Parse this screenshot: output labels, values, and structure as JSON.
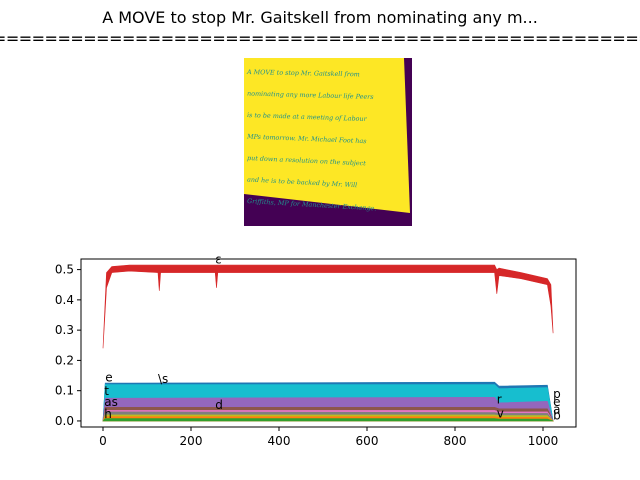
{
  "figure": {
    "title_line1": "A MOVE to stop Mr. Gaitskell from nominating any m...",
    "title_line2": "========================================================"
  },
  "image_panel": {
    "background_color": "#440154",
    "page_color": "#fde725",
    "ink_color": "#21918c",
    "handwriting_lines": [
      "A MOVE to stop Mr. Gaitskell from",
      "nominating any more Labour life Peers",
      "is to be made at a meeting of Labour",
      "MPs tomorrow. Mr. Michael Foot has",
      "put down a resolution on the subject",
      "and he is to be backed by Mr. Will",
      "Griffiths, MP for Manchester Exchange."
    ]
  },
  "chart_data": {
    "type": "area",
    "x_range": [
      0,
      1023
    ],
    "xlim": [
      -50,
      1075
    ],
    "ylim": [
      -0.02,
      0.535
    ],
    "xticks": [
      0,
      200,
      400,
      600,
      800,
      1000
    ],
    "yticks": [
      0.0,
      0.1,
      0.2,
      0.3,
      0.4,
      0.5
    ],
    "grid": false,
    "series": [
      {
        "color": "#d62728",
        "low": [
          [
            0,
            0.24
          ],
          [
            8,
            0.44
          ],
          [
            20,
            0.49
          ],
          [
            60,
            0.495
          ],
          [
            125,
            0.49
          ],
          [
            128,
            0.43
          ],
          [
            131,
            0.49
          ],
          [
            255,
            0.49
          ],
          [
            258,
            0.44
          ],
          [
            261,
            0.49
          ],
          [
            890,
            0.49
          ],
          [
            895,
            0.42
          ],
          [
            900,
            0.48
          ],
          [
            950,
            0.47
          ],
          [
            1010,
            0.45
          ],
          [
            1018,
            0.38
          ],
          [
            1023,
            0.29
          ]
        ],
        "high": [
          [
            0,
            0.24
          ],
          [
            8,
            0.49
          ],
          [
            20,
            0.51
          ],
          [
            60,
            0.515
          ],
          [
            890,
            0.515
          ],
          [
            895,
            0.5
          ],
          [
            900,
            0.505
          ],
          [
            950,
            0.49
          ],
          [
            1010,
            0.47
          ],
          [
            1018,
            0.45
          ],
          [
            1023,
            0.29
          ]
        ]
      },
      {
        "color": "#1f77b4",
        "low": [
          [
            0,
            0.0
          ],
          [
            1023,
            0.0
          ]
        ],
        "high": [
          [
            0,
            0.0
          ],
          [
            5,
            0.125
          ],
          [
            890,
            0.128
          ],
          [
            900,
            0.115
          ],
          [
            1010,
            0.118
          ],
          [
            1023,
            0.0
          ]
        ]
      },
      {
        "color": "#17becf",
        "low": [
          [
            0,
            0.0
          ],
          [
            1023,
            0.0
          ]
        ],
        "high": [
          [
            0,
            0.0
          ],
          [
            5,
            0.12
          ],
          [
            890,
            0.12
          ],
          [
            900,
            0.107
          ],
          [
            1010,
            0.11
          ],
          [
            1023,
            0.0
          ]
        ]
      },
      {
        "color": "#9467bd",
        "low": [
          [
            0,
            0.0
          ],
          [
            1023,
            0.0
          ]
        ],
        "high": [
          [
            0,
            0.0
          ],
          [
            5,
            0.075
          ],
          [
            890,
            0.078
          ],
          [
            900,
            0.06
          ],
          [
            1010,
            0.065
          ],
          [
            1023,
            0.0
          ]
        ]
      },
      {
        "color": "#8c564b",
        "low": [
          [
            0,
            0.0
          ],
          [
            1023,
            0.0
          ]
        ],
        "high": [
          [
            0,
            0.0
          ],
          [
            5,
            0.045
          ],
          [
            890,
            0.045
          ],
          [
            900,
            0.04
          ],
          [
            1010,
            0.04
          ],
          [
            1023,
            0.0
          ]
        ]
      },
      {
        "color": "#e377c2",
        "low": [
          [
            0,
            0.0
          ],
          [
            1023,
            0.0
          ]
        ],
        "high": [
          [
            0,
            0.0
          ],
          [
            5,
            0.035
          ],
          [
            890,
            0.035
          ],
          [
            900,
            0.03
          ],
          [
            1010,
            0.03
          ],
          [
            1023,
            0.0
          ]
        ]
      },
      {
        "color": "#7f7f7f",
        "low": [
          [
            0,
            0.0
          ],
          [
            1023,
            0.0
          ]
        ],
        "high": [
          [
            0,
            0.0
          ],
          [
            5,
            0.03
          ],
          [
            890,
            0.028
          ],
          [
            900,
            0.025
          ],
          [
            1010,
            0.025
          ],
          [
            1023,
            0.0
          ]
        ]
      },
      {
        "color": "#bcbd22",
        "low": [
          [
            0,
            0.0
          ],
          [
            1023,
            0.0
          ]
        ],
        "high": [
          [
            0,
            0.0
          ],
          [
            5,
            0.02
          ],
          [
            890,
            0.02
          ],
          [
            900,
            0.018
          ],
          [
            1010,
            0.018
          ],
          [
            1023,
            0.0
          ]
        ]
      },
      {
        "color": "#ff7f0e",
        "low": [
          [
            0,
            0.0
          ],
          [
            1023,
            0.0
          ]
        ],
        "high": [
          [
            0,
            0.0
          ],
          [
            5,
            0.014
          ],
          [
            890,
            0.014
          ],
          [
            900,
            0.012
          ],
          [
            1010,
            0.012
          ],
          [
            1023,
            0.0
          ]
        ]
      },
      {
        "color": "#2ca02c",
        "low": [
          [
            0,
            0.0
          ],
          [
            1023,
            0.0
          ]
        ],
        "high": [
          [
            0,
            0.0
          ],
          [
            5,
            0.008
          ],
          [
            890,
            0.008
          ],
          [
            900,
            0.006
          ],
          [
            1010,
            0.006
          ],
          [
            1023,
            0.0
          ]
        ]
      }
    ],
    "annotations": [
      {
        "text": "ε",
        "x": 255,
        "y": 0.52
      },
      {
        "text": "e",
        "x": 5,
        "y": 0.13
      },
      {
        "text": "\\s",
        "x": 125,
        "y": 0.125
      },
      {
        "text": "t",
        "x": 3,
        "y": 0.085
      },
      {
        "text": "as",
        "x": 3,
        "y": 0.05
      },
      {
        "text": "d",
        "x": 255,
        "y": 0.04
      },
      {
        "text": "r",
        "x": 895,
        "y": 0.058
      },
      {
        "text": "v",
        "x": 895,
        "y": 0.012
      },
      {
        "text": "p",
        "x": 1023,
        "y": 0.075
      },
      {
        "text": "e",
        "x": 1023,
        "y": 0.05
      },
      {
        "text": "a",
        "x": 1023,
        "y": 0.025
      },
      {
        "text": "b",
        "x": 1023,
        "y": 0.005
      },
      {
        "text": "h",
        "x": 3,
        "y": 0.01
      }
    ]
  }
}
